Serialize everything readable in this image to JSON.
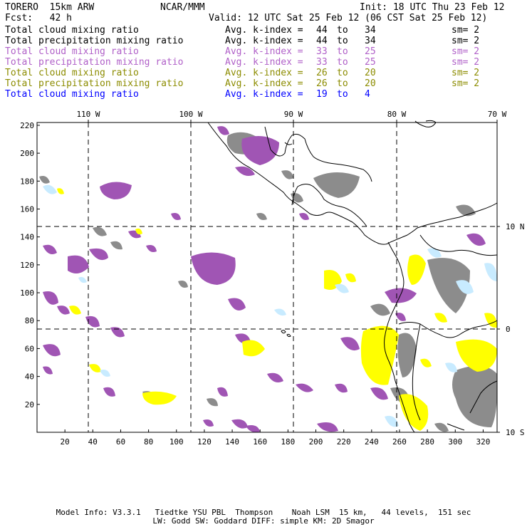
{
  "header": {
    "model": "TORERO  15km ARW",
    "org": "NCAR/MMM",
    "init": "Init: 18 UTC Thu 23 Feb 12",
    "fcst": "Fcst:   42 h",
    "valid": "Valid: 12 UTC Sat 25 Feb 12 (06 CST Sat 25 Feb 12)"
  },
  "legend": [
    {
      "name": "Total cloud mixing ratio",
      "kidx": "Avg. k-index =",
      "lo": "44",
      "to": "to",
      "hi": "34",
      "sm": "sm= 2",
      "color": "#000000"
    },
    {
      "name": "Total precipitation mixing ratio",
      "kidx": "Avg. k-index =",
      "lo": "44",
      "to": "to",
      "hi": "34",
      "sm": "sm= 2",
      "color": "#000000"
    },
    {
      "name": "Total cloud mixing ratio",
      "kidx": "Avg. k-index =",
      "lo": "33",
      "to": "to",
      "hi": "25",
      "sm": "sm= 2",
      "color": "#b060c8"
    },
    {
      "name": "Total precipitation mixing ratio",
      "kidx": "Avg. k-index =",
      "lo": "33",
      "to": "to",
      "hi": "25",
      "sm": "sm= 2",
      "color": "#b060c8"
    },
    {
      "name": "Total cloud mixing ratio",
      "kidx": "Avg. k-index =",
      "lo": "26",
      "to": "to",
      "hi": "20",
      "sm": "sm= 2",
      "color": "#8c8c00"
    },
    {
      "name": "Total precipitation mixing ratio",
      "kidx": "Avg. k-index =",
      "lo": "26",
      "to": "to",
      "hi": "20",
      "sm": "sm= 2",
      "color": "#8c8c00"
    },
    {
      "name": "Total cloud mixing ratio",
      "kidx": "Avg. k-index =",
      "lo": "19",
      "to": "to",
      "hi": "4",
      "sm": "",
      "color": "#0000ff"
    }
  ],
  "map": {
    "lon_labels": [
      "110 W",
      "100 W",
      "90 W",
      "80 W",
      "70 W"
    ],
    "lat_labels": [
      "10 N",
      "0",
      "10 S"
    ],
    "x_ticks": [
      "20",
      "40",
      "60",
      "80",
      "100",
      "120",
      "140",
      "160",
      "180",
      "200",
      "220",
      "240",
      "260",
      "280",
      "300",
      "320"
    ],
    "y_ticks": [
      "20",
      "40",
      "60",
      "80",
      "100",
      "120",
      "140",
      "160",
      "180",
      "200",
      "220"
    ],
    "colors": {
      "gray": "#8c8c8c",
      "purple": "#a055b4",
      "yellow": "#ffff00",
      "lightblue": "#c8ebff",
      "border": "#000000"
    }
  },
  "footer": {
    "line1": "Model Info: V3.3.1   Tiedtke YSU PBL  Thompson    Noah LSM  15 km,   44 levels,  151 sec",
    "line2": "LW: Godd SW: Goddard DIFF: simple KM: 2D Smagor"
  }
}
